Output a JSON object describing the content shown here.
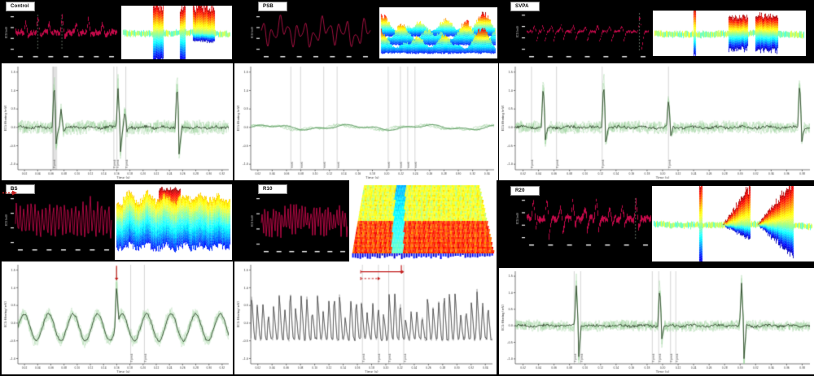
{
  "figure": {
    "background": "#000000",
    "raw_trace_red": "#d60a50",
    "light_trace_green": "#91cd91",
    "dark_trace": "#24381f",
    "annotation_red": "#c42020",
    "gridline_gray": "#c4c4c4",
    "colormap": "jet"
  },
  "chart_data": [
    {
      "label": "Control",
      "type": "composite-ecg-group",
      "raw": {
        "ylabel": "ECG (mV)",
        "color": "#d60a50",
        "pattern": "spikes",
        "band": 0.1,
        "spikes": [
          {
            "p": 0.1,
            "u": 0.55,
            "d": -0.15
          },
          {
            "p": 0.22,
            "u": 0.95,
            "d": -0.2
          },
          {
            "p": 0.33,
            "u": 0.5,
            "d": -0.15
          },
          {
            "p": 0.46,
            "u": 0.85,
            "d": -0.2
          },
          {
            "p": 0.6,
            "u": 0.55,
            "d": -0.15
          },
          {
            "p": 0.72,
            "u": 0.8,
            "d": -0.2
          },
          {
            "p": 0.86,
            "u": 0.55,
            "d": -0.15
          }
        ],
        "vlines": [
          0.22,
          0.46
        ]
      },
      "surface": {
        "type": "3d-surface",
        "colormap": "jet",
        "style": "sheet",
        "desc": "flat cyan-green sheet with three blade spikes: red upward, blue downward",
        "features": [
          {
            "p": 0.33,
            "w": 0.09,
            "up": 0.5,
            "down": 0.5
          },
          {
            "p": 0.55,
            "w": 0.055,
            "up": 0.45,
            "down": 0.55
          },
          {
            "p": 0.745,
            "w": 0.2,
            "up": 0.48,
            "down": 0.14
          }
        ]
      },
      "filtered": {
        "ylabel": "ECG filtering (mV)",
        "xlabel": "Time (s)",
        "ylim": [
          -1.15,
          1.65
        ],
        "yticks": [
          "1.5",
          "1.0",
          "0.5",
          "0.0",
          "-0.5",
          "-1.0"
        ],
        "xticks": [
          "0.02",
          "0.04",
          "0.06",
          "0.08",
          "0.10",
          "0.12",
          "0.14",
          "0.16",
          "0.18",
          "0.20",
          "0.22",
          "0.24",
          "0.26",
          "0.28",
          "0.30",
          "0.32"
        ],
        "pattern": "noisy-spikes",
        "noise": 0.17,
        "spikes": [
          {
            "p": 0.172,
            "u": 1.5,
            "d": -0.55
          },
          {
            "p": 0.205,
            "u": 0.6,
            "d": -0.15
          },
          {
            "p": 0.475,
            "u": 1.3,
            "d": -0.95
          },
          {
            "p": 0.507,
            "u": 0.55,
            "d": -0.15
          },
          {
            "p": 0.755,
            "u": 1.45,
            "d": -0.9
          }
        ],
        "vlines": [
          {
            "x": 0.168,
            "label": "R peak"
          },
          {
            "x": 0.455,
            "label": "R peak"
          },
          {
            "x": 0.47,
            "label": "R peak"
          },
          {
            "x": 0.512,
            "label": "R peak"
          }
        ],
        "bands": [
          {
            "x": 0.162,
            "w": 0.024
          }
        ],
        "arrows": []
      }
    },
    {
      "label": "PSB",
      "type": "composite-ecg-group",
      "raw": {
        "ylabel": "ECG (mV)",
        "color": "#c9144f",
        "pattern": "wave",
        "components": [
          [
            13,
            0.5
          ],
          [
            5.2,
            0.33
          ],
          [
            21,
            0.15
          ],
          [
            2.3,
            0.18
          ]
        ]
      },
      "surface": {
        "type": "3d-surface",
        "colormap": "jet",
        "style": "mountains",
        "desc": "field of rainbow peaks, red summits and blue valleys"
      },
      "filtered": {
        "ylabel": "ECG filtering (mV)",
        "xlabel": "Time (s)",
        "ylim": [
          -1.15,
          1.65
        ],
        "yticks": [
          "1.5",
          "1.0",
          "0.5",
          "0.0",
          "-0.5",
          "-1.0"
        ],
        "xticks": [
          "0.02",
          "0.04",
          "0.06",
          "0.08",
          "0.10",
          "0.12",
          "0.14",
          "0.16",
          "0.18",
          "0.20",
          "0.22",
          "0.24",
          "0.26",
          "0.28",
          "0.30",
          "0.32",
          "0.34"
        ],
        "pattern": "flat-wave",
        "noise": 0.03,
        "spikes": [],
        "vlines": [
          {
            "x": 0.165,
            "label": "mark"
          },
          {
            "x": 0.205,
            "label": "mark"
          },
          {
            "x": 0.3,
            "label": "mark"
          },
          {
            "x": 0.355,
            "label": "mark"
          },
          {
            "x": 0.565,
            "label": "mark"
          },
          {
            "x": 0.615,
            "label": "mark"
          },
          {
            "x": 0.645,
            "label": "mark"
          },
          {
            "x": 0.675,
            "label": "mark"
          }
        ],
        "arrows": []
      }
    },
    {
      "label": "SVPA",
      "type": "composite-ecg-group",
      "raw": {
        "ylabel": "ECG (mV)",
        "color": "#d60a50",
        "pattern": "spikes",
        "band": 0.05,
        "spikes": [
          {
            "p": 0.06,
            "u": 0.3,
            "d": -0.55
          },
          {
            "p": 0.13,
            "u": 0.3,
            "d": -0.5
          },
          {
            "p": 0.2,
            "u": 0.3,
            "d": -0.55
          },
          {
            "p": 0.28,
            "u": 0.35,
            "d": -0.5
          },
          {
            "p": 0.38,
            "u": 0.3,
            "d": -0.55
          },
          {
            "p": 0.48,
            "u": 0.3,
            "d": -0.5
          },
          {
            "p": 0.58,
            "u": 0.35,
            "d": -0.55
          },
          {
            "p": 0.68,
            "u": 0.3,
            "d": -0.5
          },
          {
            "p": 0.78,
            "u": 0.3,
            "d": -0.5
          },
          {
            "p": 0.93,
            "u": 0.85,
            "d": -0.85
          }
        ],
        "vlines": [
          0.93
        ]
      },
      "surface": {
        "type": "3d-surface",
        "colormap": "jet",
        "style": "sheet",
        "desc": "thin flat sheet seen edge-on, one thin red spike at left, two red/blue blocks at right",
        "features": [
          {
            "p": 0.27,
            "w": 0.014,
            "up": 0.62,
            "down": 0.5
          },
          {
            "p": 0.555,
            "w": 0.13,
            "up": 0.36,
            "down": 0.34
          },
          {
            "p": 0.74,
            "w": 0.15,
            "up": 0.38,
            "down": 0.36
          }
        ]
      },
      "filtered": {
        "ylabel": "ECG filtering (mV)",
        "xlabel": "Time (s)",
        "ylim": [
          -1.15,
          1.65
        ],
        "yticks": [
          "1.5",
          "1.0",
          "0.5",
          "0.0",
          "-0.5",
          "-1.0"
        ],
        "xticks": [
          "0.02",
          "0.04",
          "0.06",
          "0.08",
          "0.10",
          "0.12",
          "0.14",
          "0.16",
          "0.18",
          "0.20",
          "0.22",
          "0.24",
          "0.26",
          "0.28",
          "0.30",
          "0.32",
          "0.34",
          "0.36",
          "0.38"
        ],
        "pattern": "noisy-spikes",
        "noise": 0.15,
        "spikes": [
          {
            "p": 0.095,
            "u": 1.4,
            "d": -0.45
          },
          {
            "p": 0.3,
            "u": 1.5,
            "d": -0.5
          },
          {
            "p": 0.52,
            "u": 0.95,
            "d": -0.3
          },
          {
            "p": 0.965,
            "u": 1.55,
            "d": -0.45
          }
        ],
        "vlines": [
          {
            "x": 0.055,
            "label": "R peak"
          },
          {
            "x": 0.14,
            "label": "R peak"
          },
          {
            "x": 0.295,
            "label": "R peak"
          },
          {
            "x": 0.52,
            "label": "R peak"
          }
        ],
        "arrows": []
      }
    },
    {
      "label": "BS",
      "type": "composite-ecg-group",
      "raw": {
        "ylabel": "ECG (mV)",
        "color": "#d60a50",
        "pattern": "osc",
        "amp": 0.6,
        "freq": 26,
        "noise": 0.2,
        "spikes": [
          {
            "p": 0.78,
            "u": 0.35
          }
        ],
        "annotation": "red dashed arrow at left margin"
      },
      "surface": {
        "type": "3d-surface",
        "colormap": "jet",
        "style": "waves",
        "desc": "wavy green-to-blue banded surface with one orange-red block peak on top"
      },
      "filtered": {
        "ylabel": "ECG filtering (mV)",
        "xlabel": "Time (s)",
        "ylim": [
          -1.15,
          1.65
        ],
        "yticks": [
          "1.5",
          "1.0",
          "0.5",
          "0.0",
          "-0.5",
          "-1.0"
        ],
        "xticks": [
          "0.02",
          "0.04",
          "0.06",
          "0.08",
          "0.10",
          "0.12",
          "0.14",
          "0.16",
          "0.18",
          "0.20",
          "0.22",
          "0.24",
          "0.26",
          "0.28",
          "0.30",
          "0.32"
        ],
        "pattern": "slow-osc",
        "freq": 8.6,
        "amp": 0.38,
        "offset": -0.12,
        "peak": {
          "p": 0.468,
          "u": 1.45
        },
        "vlines": [
          {
            "x": 0.535,
            "label": "R peak"
          },
          {
            "x": 0.6,
            "label": "R peak"
          }
        ],
        "arrows": [
          {
            "type": "v",
            "x": 0.468,
            "y1": 1.62,
            "y2": 1.28
          }
        ]
      }
    },
    {
      "label": "R10",
      "type": "composite-ecg-group",
      "raw": {
        "ylabel": "ECG (mV)",
        "color": "#d60a50",
        "pattern": "osc",
        "amp": 0.5,
        "freq": 30,
        "noise": 0.25,
        "spikes": []
      },
      "surface": {
        "type": "3d-surface",
        "colormap": "jet",
        "style": "comb",
        "desc": "dense comb of narrow ridges: green upper half, orange lower half, blue central column and blue bottom fringe"
      },
      "filtered": {
        "ylabel": "ECG filtering (mV)",
        "xlabel": "Time (s)",
        "ylim": [
          -1.15,
          1.65
        ],
        "yticks": [
          "1.5",
          "1.0",
          "0.5",
          "0.0",
          "-0.5",
          "-1.0"
        ],
        "xticks": [
          "0.02",
          "0.04",
          "0.06",
          "0.08",
          "0.10",
          "0.12",
          "0.14",
          "0.16",
          "0.18",
          "0.20",
          "0.22",
          "0.24",
          "0.26",
          "0.28",
          "0.30",
          "0.32",
          "0.34"
        ],
        "pattern": "fast-osc",
        "cycles": 44,
        "base": -0.45,
        "peakMin": 0.55,
        "peakMax": 1.5,
        "vlines": [
          {
            "x": 0.462,
            "label": "R peak"
          },
          {
            "x": 0.528,
            "label": "R peak"
          },
          {
            "x": 0.571,
            "label": "R peak"
          },
          {
            "x": 0.633,
            "label": "R peak"
          }
        ],
        "arrows": [
          {
            "type": "h",
            "x1": 0.455,
            "x2": 0.623,
            "y": 1.45
          },
          {
            "type": "h",
            "x1": 0.455,
            "x2": 0.525,
            "y": 1.26,
            "dashed": true
          },
          {
            "type": "v",
            "x": 0.623,
            "y1": 1.64,
            "y2": 1.47
          }
        ]
      }
    },
    {
      "label": "R20",
      "type": "composite-ecg-group",
      "raw": {
        "ylabel": "ECG (mV)",
        "color": "#d60a50",
        "pattern": "spikes",
        "band": 0.12,
        "spikes": [
          {
            "p": 0.05,
            "u": 0.9,
            "d": -0.5
          },
          {
            "p": 0.16,
            "u": 0.85,
            "d": -0.9
          },
          {
            "p": 0.27,
            "u": 0.6,
            "d": -0.9
          },
          {
            "p": 0.37,
            "u": 0.9,
            "d": -0.4
          },
          {
            "p": 0.47,
            "u": 0.55,
            "d": -0.5
          },
          {
            "p": 0.56,
            "u": 0.85,
            "d": -0.6
          },
          {
            "p": 0.67,
            "u": 0.5,
            "d": -0.3
          },
          {
            "p": 0.77,
            "u": 0.65,
            "d": -0.5
          },
          {
            "p": 0.88,
            "u": 0.85,
            "d": -0.7
          }
        ],
        "vlines": [
          0.88
        ]
      },
      "surface": {
        "type": "3d-surface",
        "colormap": "jet",
        "style": "sheet",
        "desc": "cyan sheet with one thin red blade and two wide red-topped ramps with blue undersides",
        "features": [
          {
            "p": 0.3,
            "w": 0.02,
            "up": 0.58,
            "down": 0.52
          },
          {
            "p": 0.52,
            "w": 0.17,
            "up": 0.52,
            "down": 0.2,
            "ramp": true
          },
          {
            "p": 0.76,
            "w": 0.22,
            "up": 0.58,
            "down": 0.4,
            "ramp": true
          }
        ]
      },
      "filtered": {
        "ylabel": "ECG filtering (mV)",
        "xlabel": "Time (s)",
        "ylim": [
          -1.15,
          1.65
        ],
        "yticks": [
          "1.5",
          "1.0",
          "0.5",
          "0.0",
          "-0.5",
          "-1.0"
        ],
        "xticks": [
          "0.02",
          "0.04",
          "0.06",
          "0.08",
          "0.10",
          "0.12",
          "0.14",
          "0.16",
          "0.18",
          "0.20",
          "0.22",
          "0.24",
          "0.26",
          "0.28",
          "0.30",
          "0.32",
          "0.34",
          "0.36",
          "0.38"
        ],
        "pattern": "noisy-spikes",
        "noise": 0.15,
        "spikes": [
          {
            "p": 0.207,
            "u": 1.55,
            "d": -1.35
          },
          {
            "p": 0.49,
            "u": 1.5,
            "d": -0.5
          },
          {
            "p": 0.768,
            "u": 1.55,
            "d": -1.45
          }
        ],
        "vlines": [
          {
            "x": 0.2,
            "label": "R peak"
          },
          {
            "x": 0.222,
            "label": "R peak"
          },
          {
            "x": 0.465,
            "label": "R peak"
          },
          {
            "x": 0.487,
            "label": "R peak"
          },
          {
            "x": 0.527,
            "label": "R peak"
          },
          {
            "x": 0.545,
            "label": "R peak"
          }
        ],
        "arrows": []
      }
    }
  ]
}
